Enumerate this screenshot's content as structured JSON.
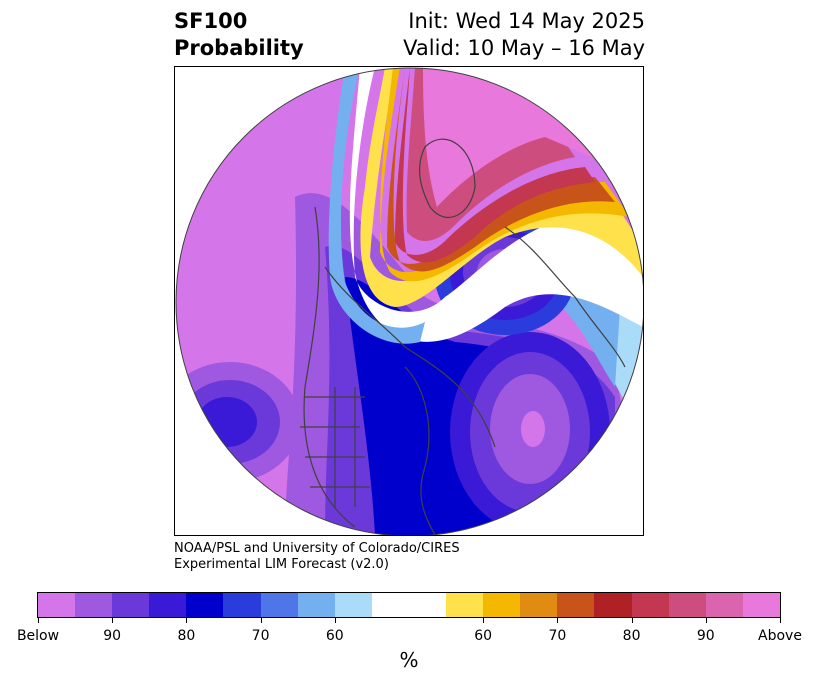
{
  "title": {
    "left_line1": "SF100",
    "left_line2": "Probability",
    "right_line1": "Init: Wed 14 May 2025",
    "right_line2": "Valid: 10 May – 16 May"
  },
  "credit": {
    "line1": "NOAA/PSL and University of Colorado/CIRES",
    "line2": "Experimental LIM Forecast (v2.0)"
  },
  "colorbar": {
    "unit": "%",
    "colors": [
      "#d575ea",
      "#9f58e0",
      "#6b39d9",
      "#3a1ad6",
      "#0000cd",
      "#2a3cdc",
      "#4f76e8",
      "#74aff0",
      "#aadcfa",
      "#ffffff",
      "#ffe24b",
      "#f5b800",
      "#e08b12",
      "#c8541a",
      "#b02126",
      "#c43750",
      "#cd4e7e",
      "#da64ad",
      "#e878dc"
    ],
    "tick_labels": [
      "Below",
      "90",
      "80",
      "70",
      "60",
      "60",
      "70",
      "80",
      "90",
      "Above"
    ]
  },
  "map": {
    "colors": {
      "below_strong": "#d575ea",
      "below_90": "#9f58e0",
      "below_80": "#6b39d9",
      "below_75": "#3a1ad6",
      "below_70": "#0000cd",
      "below_65": "#2a3cdc",
      "below_60": "#4f76e8",
      "below_55": "#74aff0",
      "below_50": "#aadcfa",
      "neutral": "#ffffff",
      "above_55": "#ffe24b",
      "above_60": "#f5b800",
      "above_65": "#e08b12",
      "above_70": "#c8541a",
      "above_75": "#b02126",
      "above_80": "#c43750",
      "above_85": "#cd4e7e",
      "above_strong": "#e878dc",
      "coast": "#404040"
    }
  }
}
